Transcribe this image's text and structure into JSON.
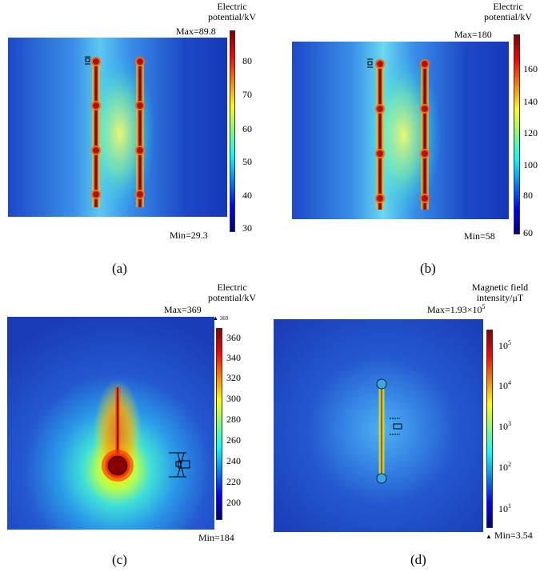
{
  "colors": {
    "jet": [
      "#00007f",
      "#0000ff",
      "#007fff",
      "#00ffff",
      "#7fff7f",
      "#ffff00",
      "#ff7f00",
      "#ff0000",
      "#7f0000"
    ],
    "background_field": "#2a5bd6"
  },
  "panels": [
    {
      "id": "a",
      "label": "(a)",
      "quantity": "Electric potential/kV",
      "title_lines": [
        "Electric",
        "potential/kV"
      ],
      "max_text": "Max=89.8",
      "min_text": "Min=29.3",
      "ticks": [
        "80",
        "70",
        "60",
        "50",
        "40",
        "30"
      ],
      "tick_values": [
        80,
        70,
        60,
        50,
        40,
        30
      ],
      "range": [
        29.3,
        89.8
      ]
    },
    {
      "id": "b",
      "label": "(b)",
      "quantity": "Electric potential/kV",
      "title_lines": [
        "Electric",
        "potential/kV"
      ],
      "max_text": "Max=180",
      "min_text": "Min=58",
      "ticks": [
        "160",
        "140",
        "120",
        "100",
        "80",
        "60"
      ],
      "tick_values": [
        160,
        140,
        120,
        100,
        80,
        60
      ],
      "range": [
        58,
        180
      ]
    },
    {
      "id": "c",
      "label": "(c)",
      "quantity": "Electric potential/kV",
      "title_lines": [
        "Electric",
        "potential/kV"
      ],
      "max_text": "Max=369",
      "max_marker": "369",
      "min_text": "Min=184",
      "ticks": [
        "360",
        "340",
        "320",
        "300",
        "280",
        "260",
        "240",
        "220",
        "200"
      ],
      "tick_values": [
        360,
        340,
        320,
        300,
        280,
        260,
        240,
        220,
        200
      ],
      "range": [
        184,
        369
      ]
    },
    {
      "id": "d",
      "label": "(d)",
      "quantity": "Magnetic field intensity/μT",
      "title_lines": [
        "Magnetic field",
        "intensity/μT"
      ],
      "max_text": "Max=1.93×10",
      "max_exp": "5",
      "min_text": "Min=3.54",
      "ticks": [
        "10",
        "10",
        "10",
        "10",
        "10"
      ],
      "tick_exps": [
        "5",
        "4",
        "3",
        "2",
        "1"
      ],
      "tick_values": [
        100000,
        10000,
        1000,
        100,
        10
      ],
      "scale": "log",
      "range": [
        3.54,
        193000
      ]
    }
  ]
}
